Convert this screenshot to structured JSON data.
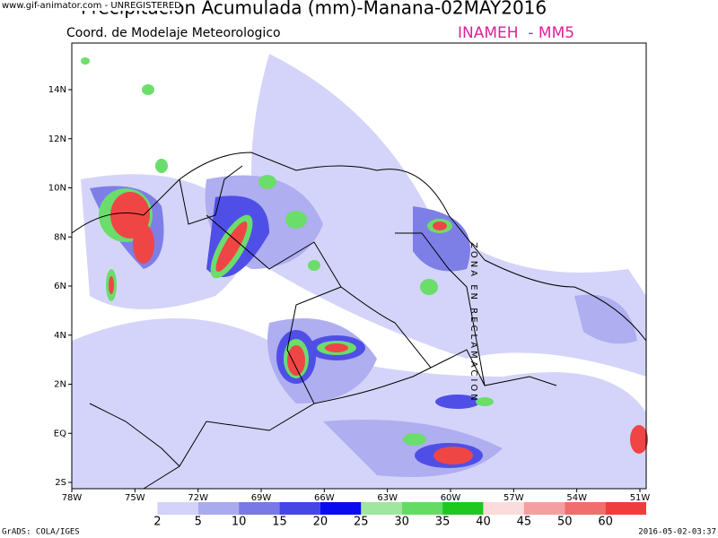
{
  "watermark": "www.gif-animator.com - UNREGISTERED",
  "title": "Precipitacion Acumulada (mm)-Manana-02MAY2016",
  "subtitle": "Coord. de Modelaje Meteorologico",
  "agency": "INAMEH  - MM5",
  "zone_label": "ZONA EN RECLAMACION",
  "lat_labels": [
    "14N",
    "12N",
    "10N",
    "8N",
    "6N",
    "4N",
    "2N",
    "EQ",
    "2S"
  ],
  "lon_labels": [
    "78W",
    "75W",
    "72W",
    "69W",
    "66W",
    "63W",
    "60W",
    "57W",
    "54W",
    "51W"
  ],
  "colorbar": {
    "labels": [
      "2",
      "5",
      "10",
      "15",
      "20",
      "25",
      "30",
      "35",
      "40",
      "45",
      "50",
      "60"
    ],
    "colors": [
      "#ffffff",
      "#d2d2fa",
      "#aaaaf0",
      "#7878e6",
      "#4646e6",
      "#0a0af0",
      "#a0e6a0",
      "#64dc64",
      "#1ec81e",
      "#fadcdc",
      "#f5a0a0",
      "#f06e6e",
      "#f03c3c"
    ]
  },
  "footer_left": "GrADS: COLA/IGES",
  "footer_right": "2016-05-02-03:37"
}
